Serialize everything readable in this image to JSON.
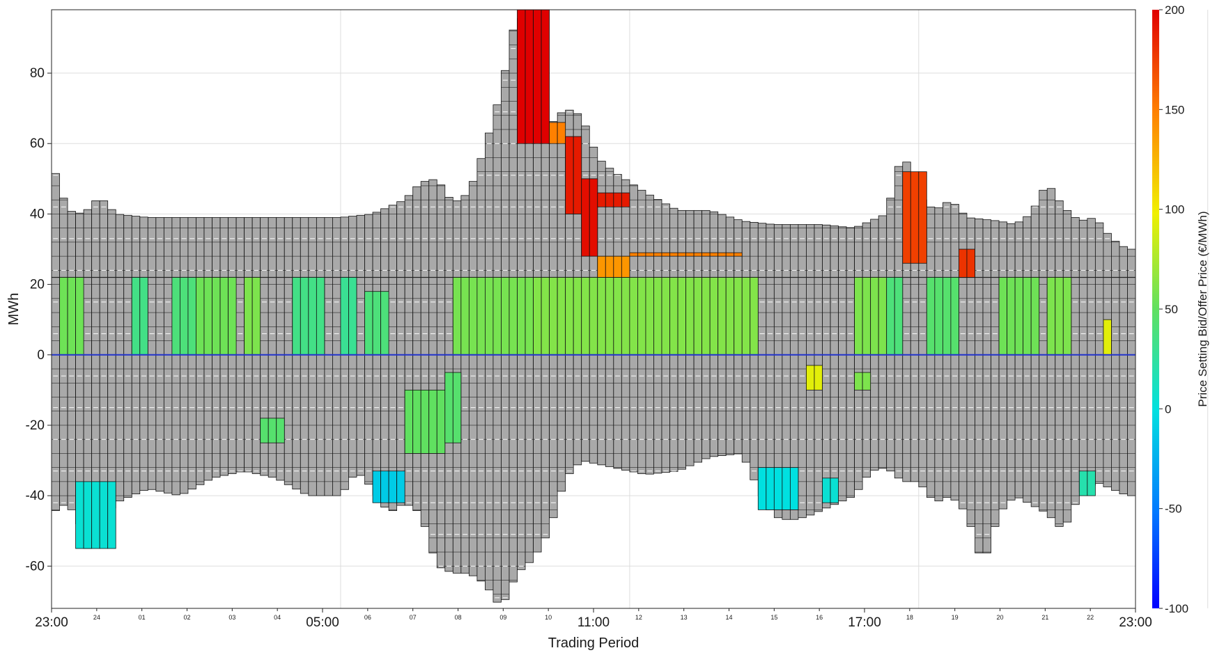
{
  "chart_data": {
    "type": "bar",
    "xlabel": "Trading Period",
    "ylabel": "MWh",
    "ylim": [
      -72,
      98
    ],
    "yticks": [
      -60,
      -40,
      -20,
      0,
      20,
      40,
      60,
      80
    ],
    "grid": true,
    "x_major_ticks": [
      "23:00",
      "05:00",
      "11:00",
      "17:00",
      "23:00"
    ],
    "x_minor_ticks": [
      "24",
      "01",
      "02",
      "03",
      "04",
      "06",
      "07",
      "08",
      "09",
      "10",
      "12",
      "13",
      "14",
      "15",
      "16",
      "18",
      "19",
      "20",
      "21",
      "22"
    ],
    "colorbar": {
      "label": "Price Setting Bid/Offer Price (€/MWh)",
      "range": [
        -100,
        200
      ],
      "ticks": [
        -100,
        -50,
        0,
        50,
        100,
        150,
        200
      ],
      "colors": [
        "#0000ff",
        "#00c8ff",
        "#00e6c8",
        "#7fe07f",
        "#ffff00",
        "#ff8000",
        "#e60000"
      ]
    },
    "series_description": "Stacked bars of accepted bid/offer volumes per trading period (grey = not price setting); coloured segments show price-setting prices.",
    "positive_envelope": [
      [
        0,
        55
      ],
      [
        2,
        41
      ],
      [
        4,
        40
      ],
      [
        6,
        45
      ],
      [
        8,
        40
      ],
      [
        12,
        39
      ],
      [
        36,
        39
      ],
      [
        40,
        40
      ],
      [
        44,
        44
      ],
      [
        46,
        49
      ],
      [
        48,
        50
      ],
      [
        50,
        43
      ],
      [
        52,
        46
      ],
      [
        54,
        59
      ],
      [
        56,
        75
      ],
      [
        58,
        98
      ],
      [
        60,
        88
      ],
      [
        62,
        65
      ],
      [
        64,
        70
      ],
      [
        66,
        68
      ],
      [
        68,
        56
      ],
      [
        70,
        52
      ],
      [
        74,
        46
      ],
      [
        78,
        41
      ],
      [
        82,
        41
      ],
      [
        86,
        38
      ],
      [
        90,
        37
      ],
      [
        96,
        37
      ],
      [
        100,
        36
      ],
      [
        104,
        40
      ],
      [
        106,
        58
      ],
      [
        108,
        45
      ],
      [
        110,
        41
      ],
      [
        112,
        44
      ],
      [
        114,
        39
      ],
      [
        118,
        38
      ],
      [
        120,
        37
      ],
      [
        122,
        40
      ],
      [
        124,
        49
      ],
      [
        126,
        42
      ],
      [
        128,
        38
      ],
      [
        130,
        39
      ],
      [
        132,
        33
      ],
      [
        134,
        30
      ],
      [
        135,
        30
      ]
    ],
    "negative_envelope": [
      [
        0,
        -45
      ],
      [
        2,
        -42
      ],
      [
        4,
        -50
      ],
      [
        5,
        -60
      ],
      [
        6,
        -48
      ],
      [
        8,
        -42
      ],
      [
        12,
        -38
      ],
      [
        16,
        -40
      ],
      [
        20,
        -35
      ],
      [
        24,
        -33
      ],
      [
        28,
        -35
      ],
      [
        32,
        -40
      ],
      [
        36,
        -40
      ],
      [
        38,
        -33
      ],
      [
        40,
        -38
      ],
      [
        42,
        -45
      ],
      [
        44,
        -42
      ],
      [
        46,
        -45
      ],
      [
        48,
        -60
      ],
      [
        50,
        -62
      ],
      [
        52,
        -62
      ],
      [
        54,
        -65
      ],
      [
        56,
        -72
      ],
      [
        58,
        -62
      ],
      [
        60,
        -58
      ],
      [
        62,
        -50
      ],
      [
        64,
        -35
      ],
      [
        66,
        -30
      ],
      [
        70,
        -32
      ],
      [
        74,
        -34
      ],
      [
        78,
        -33
      ],
      [
        82,
        -29
      ],
      [
        86,
        -28
      ],
      [
        88,
        -38
      ],
      [
        90,
        -46
      ],
      [
        92,
        -47
      ],
      [
        94,
        -46
      ],
      [
        96,
        -44
      ],
      [
        98,
        -42
      ],
      [
        100,
        -40
      ],
      [
        102,
        -33
      ],
      [
        104,
        -32
      ],
      [
        106,
        -36
      ],
      [
        108,
        -36
      ],
      [
        110,
        -42
      ],
      [
        112,
        -40
      ],
      [
        114,
        -45
      ],
      [
        116,
        -60
      ],
      [
        118,
        -45
      ],
      [
        120,
        -40
      ],
      [
        124,
        -45
      ],
      [
        126,
        -50
      ],
      [
        128,
        -40
      ],
      [
        130,
        -36
      ],
      [
        132,
        -38
      ],
      [
        134,
        -40
      ],
      [
        135,
        -40
      ]
    ],
    "price_segments": [
      {
        "x0": 1,
        "x1": 4,
        "y0": 0,
        "y1": 22,
        "price": 55
      },
      {
        "x0": 10,
        "x1": 12,
        "y0": 0,
        "y1": 22,
        "price": 35
      },
      {
        "x0": 15,
        "x1": 18,
        "y0": 0,
        "y1": 22,
        "price": 40
      },
      {
        "x0": 18,
        "x1": 23,
        "y0": 0,
        "y1": 22,
        "price": 55
      },
      {
        "x0": 24,
        "x1": 26,
        "y0": 0,
        "y1": 22,
        "price": 60
      },
      {
        "x0": 30,
        "x1": 34,
        "y0": 0,
        "y1": 22,
        "price": 35
      },
      {
        "x0": 36,
        "x1": 38,
        "y0": 0,
        "y1": 22,
        "price": 30
      },
      {
        "x0": 39,
        "x1": 42,
        "y0": 0,
        "y1": 18,
        "price": 40
      },
      {
        "x0": 50,
        "x1": 60,
        "y0": 0,
        "y1": 22,
        "price": 58
      },
      {
        "x0": 60,
        "x1": 88,
        "y0": 0,
        "y1": 22,
        "price": 62
      },
      {
        "x0": 100,
        "x1": 104,
        "y0": 0,
        "y1": 22,
        "price": 60
      },
      {
        "x0": 104,
        "x1": 106,
        "y0": 0,
        "y1": 22,
        "price": 40
      },
      {
        "x0": 109,
        "x1": 113,
        "y0": 0,
        "y1": 22,
        "price": 45
      },
      {
        "x0": 118,
        "x1": 123,
        "y0": 0,
        "y1": 22,
        "price": 55
      },
      {
        "x0": 124,
        "x1": 127,
        "y0": 0,
        "y1": 22,
        "price": 60
      },
      {
        "x0": 131,
        "x1": 132,
        "y0": 0,
        "y1": 10,
        "price": 95
      },
      {
        "x0": 58,
        "x1": 62,
        "y0": 60,
        "y1": 98,
        "price": 200
      },
      {
        "x0": 62,
        "x1": 64,
        "y0": 60,
        "y1": 66,
        "price": 150
      },
      {
        "x0": 64,
        "x1": 66,
        "y0": 40,
        "y1": 62,
        "price": 190
      },
      {
        "x0": 66,
        "x1": 68,
        "y0": 28,
        "y1": 50,
        "price": 195
      },
      {
        "x0": 68,
        "x1": 72,
        "y0": 42,
        "y1": 46,
        "price": 190
      },
      {
        "x0": 68,
        "x1": 72,
        "y0": 22,
        "y1": 28,
        "price": 140
      },
      {
        "x0": 72,
        "x1": 86,
        "y0": 28,
        "y1": 29,
        "price": 150
      },
      {
        "x0": 106,
        "x1": 109,
        "y0": 26,
        "y1": 52,
        "price": 175
      },
      {
        "x0": 113,
        "x1": 115,
        "y0": 22,
        "y1": 30,
        "price": 180
      },
      {
        "x0": 3,
        "x1": 8,
        "y0": -36,
        "y1": -55,
        "price": 5
      },
      {
        "x0": 26,
        "x1": 29,
        "y0": -18,
        "y1": -25,
        "price": 45
      },
      {
        "x0": 40,
        "x1": 44,
        "y0": -33,
        "y1": -42,
        "price": -10
      },
      {
        "x0": 44,
        "x1": 49,
        "y0": -10,
        "y1": -28,
        "price": 50
      },
      {
        "x0": 49,
        "x1": 51,
        "y0": -5,
        "y1": -25,
        "price": 45
      },
      {
        "x0": 88,
        "x1": 93,
        "y0": -32,
        "y1": -44,
        "price": 0
      },
      {
        "x0": 94,
        "x1": 96,
        "y0": -3,
        "y1": -10,
        "price": 95
      },
      {
        "x0": 96,
        "x1": 98,
        "y0": -35,
        "y1": -42,
        "price": 5
      },
      {
        "x0": 100,
        "x1": 102,
        "y0": -5,
        "y1": -10,
        "price": 60
      },
      {
        "x0": 128,
        "x1": 130,
        "y0": -33,
        "y1": -40,
        "price": 20
      }
    ]
  }
}
